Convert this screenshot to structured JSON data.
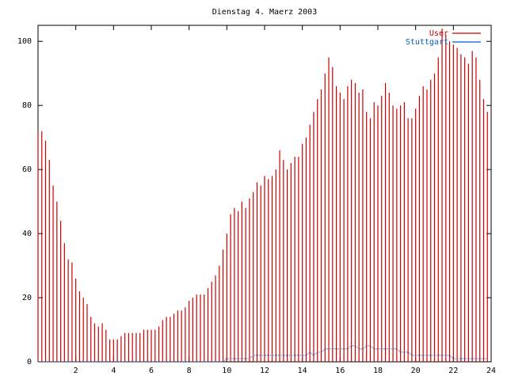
{
  "chart_data": {
    "type": "impulse",
    "title": "Dienstag 4. Maerz 2003",
    "x": [
      0,
      0.2,
      0.4,
      0.6,
      0.8,
      1,
      1.2,
      1.4,
      1.6,
      1.8,
      2,
      2.2,
      2.4,
      2.6,
      2.8,
      3,
      3.2,
      3.4,
      3.6,
      3.8,
      4,
      4.2,
      4.4,
      4.6,
      4.8,
      5,
      5.2,
      5.4,
      5.6,
      5.8,
      6,
      6.2,
      6.4,
      6.6,
      6.8,
      7,
      7.2,
      7.4,
      7.6,
      7.8,
      8,
      8.2,
      8.4,
      8.6,
      8.8,
      9,
      9.2,
      9.4,
      9.6,
      9.8,
      10,
      10.2,
      10.4,
      10.6,
      10.8,
      11,
      11.2,
      11.4,
      11.6,
      11.8,
      12,
      12.2,
      12.4,
      12.6,
      12.8,
      13,
      13.2,
      13.4,
      13.6,
      13.8,
      14,
      14.2,
      14.4,
      14.6,
      14.8,
      15,
      15.2,
      15.4,
      15.6,
      15.8,
      16,
      16.2,
      16.4,
      16.6,
      16.8,
      17,
      17.2,
      17.4,
      17.6,
      17.8,
      18,
      18.2,
      18.4,
      18.6,
      18.8,
      19,
      19.2,
      19.4,
      19.6,
      19.8,
      20,
      20.2,
      20.4,
      20.6,
      20.8,
      21,
      21.2,
      21.4,
      21.6,
      21.8,
      22,
      22.2,
      22.4,
      22.6,
      22.8,
      23,
      23.2,
      23.4,
      23.6,
      23.8
    ],
    "series": [
      {
        "name": "User",
        "color": "#cc0000",
        "style": "impulses",
        "values": [
          72,
          72,
          69,
          63,
          55,
          50,
          44,
          37,
          32,
          31,
          26,
          22,
          20,
          18,
          14,
          12,
          11,
          12,
          10,
          7,
          7,
          7,
          8,
          9,
          9,
          9,
          9,
          9,
          10,
          10,
          10,
          10,
          11,
          13,
          14,
          14,
          15,
          16,
          16,
          17,
          19,
          20,
          21,
          21,
          21,
          23,
          25,
          27,
          30,
          35,
          40,
          46,
          48,
          47,
          50,
          48,
          51,
          53,
          56,
          55,
          58,
          57,
          58,
          60,
          66,
          63,
          60,
          62,
          64,
          64,
          68,
          70,
          74,
          78,
          82,
          85,
          90,
          95,
          92,
          86,
          84,
          82,
          86,
          88,
          87,
          84,
          85,
          78,
          76,
          81,
          80,
          83,
          87,
          84,
          80,
          79,
          80,
          81,
          76,
          76,
          79,
          83,
          86,
          85,
          88,
          90,
          95,
          104,
          102,
          100,
          99,
          98,
          96,
          95,
          93,
          97,
          95,
          88,
          82,
          78
        ]
      },
      {
        "name": "Stuttgart",
        "color": "#0060c0",
        "style": "line",
        "values": [
          0,
          0,
          0,
          0,
          0,
          0,
          0,
          0,
          0,
          0,
          0,
          0,
          0,
          0,
          0,
          0,
          0,
          0,
          0,
          0,
          0,
          0,
          0,
          0,
          0,
          0,
          0,
          0,
          0,
          0,
          0,
          0,
          0,
          0,
          0,
          0,
          0,
          0,
          0,
          0,
          0,
          0,
          0,
          0,
          0,
          0,
          0,
          0,
          0,
          0,
          1,
          1,
          1,
          1,
          1,
          1,
          1,
          2,
          2,
          2,
          2,
          2,
          2,
          2,
          2,
          2,
          2,
          2,
          2,
          2,
          2,
          2,
          3,
          2,
          3,
          3,
          4,
          4,
          4,
          4,
          4,
          4,
          4,
          5,
          5,
          4,
          4,
          5,
          5,
          4,
          4,
          4,
          4,
          4,
          4,
          4,
          3,
          3,
          3,
          2,
          2,
          2,
          2,
          2,
          2,
          2,
          2,
          2,
          2,
          2,
          1,
          1,
          1,
          1,
          1,
          1,
          1,
          1,
          1,
          1
        ]
      }
    ],
    "xlim": [
      0,
      24
    ],
    "xticks": [
      2,
      4,
      6,
      8,
      10,
      12,
      14,
      16,
      18,
      20,
      22,
      24
    ],
    "ylim": [
      0,
      105
    ],
    "yticks": [
      0,
      20,
      40,
      60,
      80,
      100
    ],
    "legend": "top-right"
  }
}
